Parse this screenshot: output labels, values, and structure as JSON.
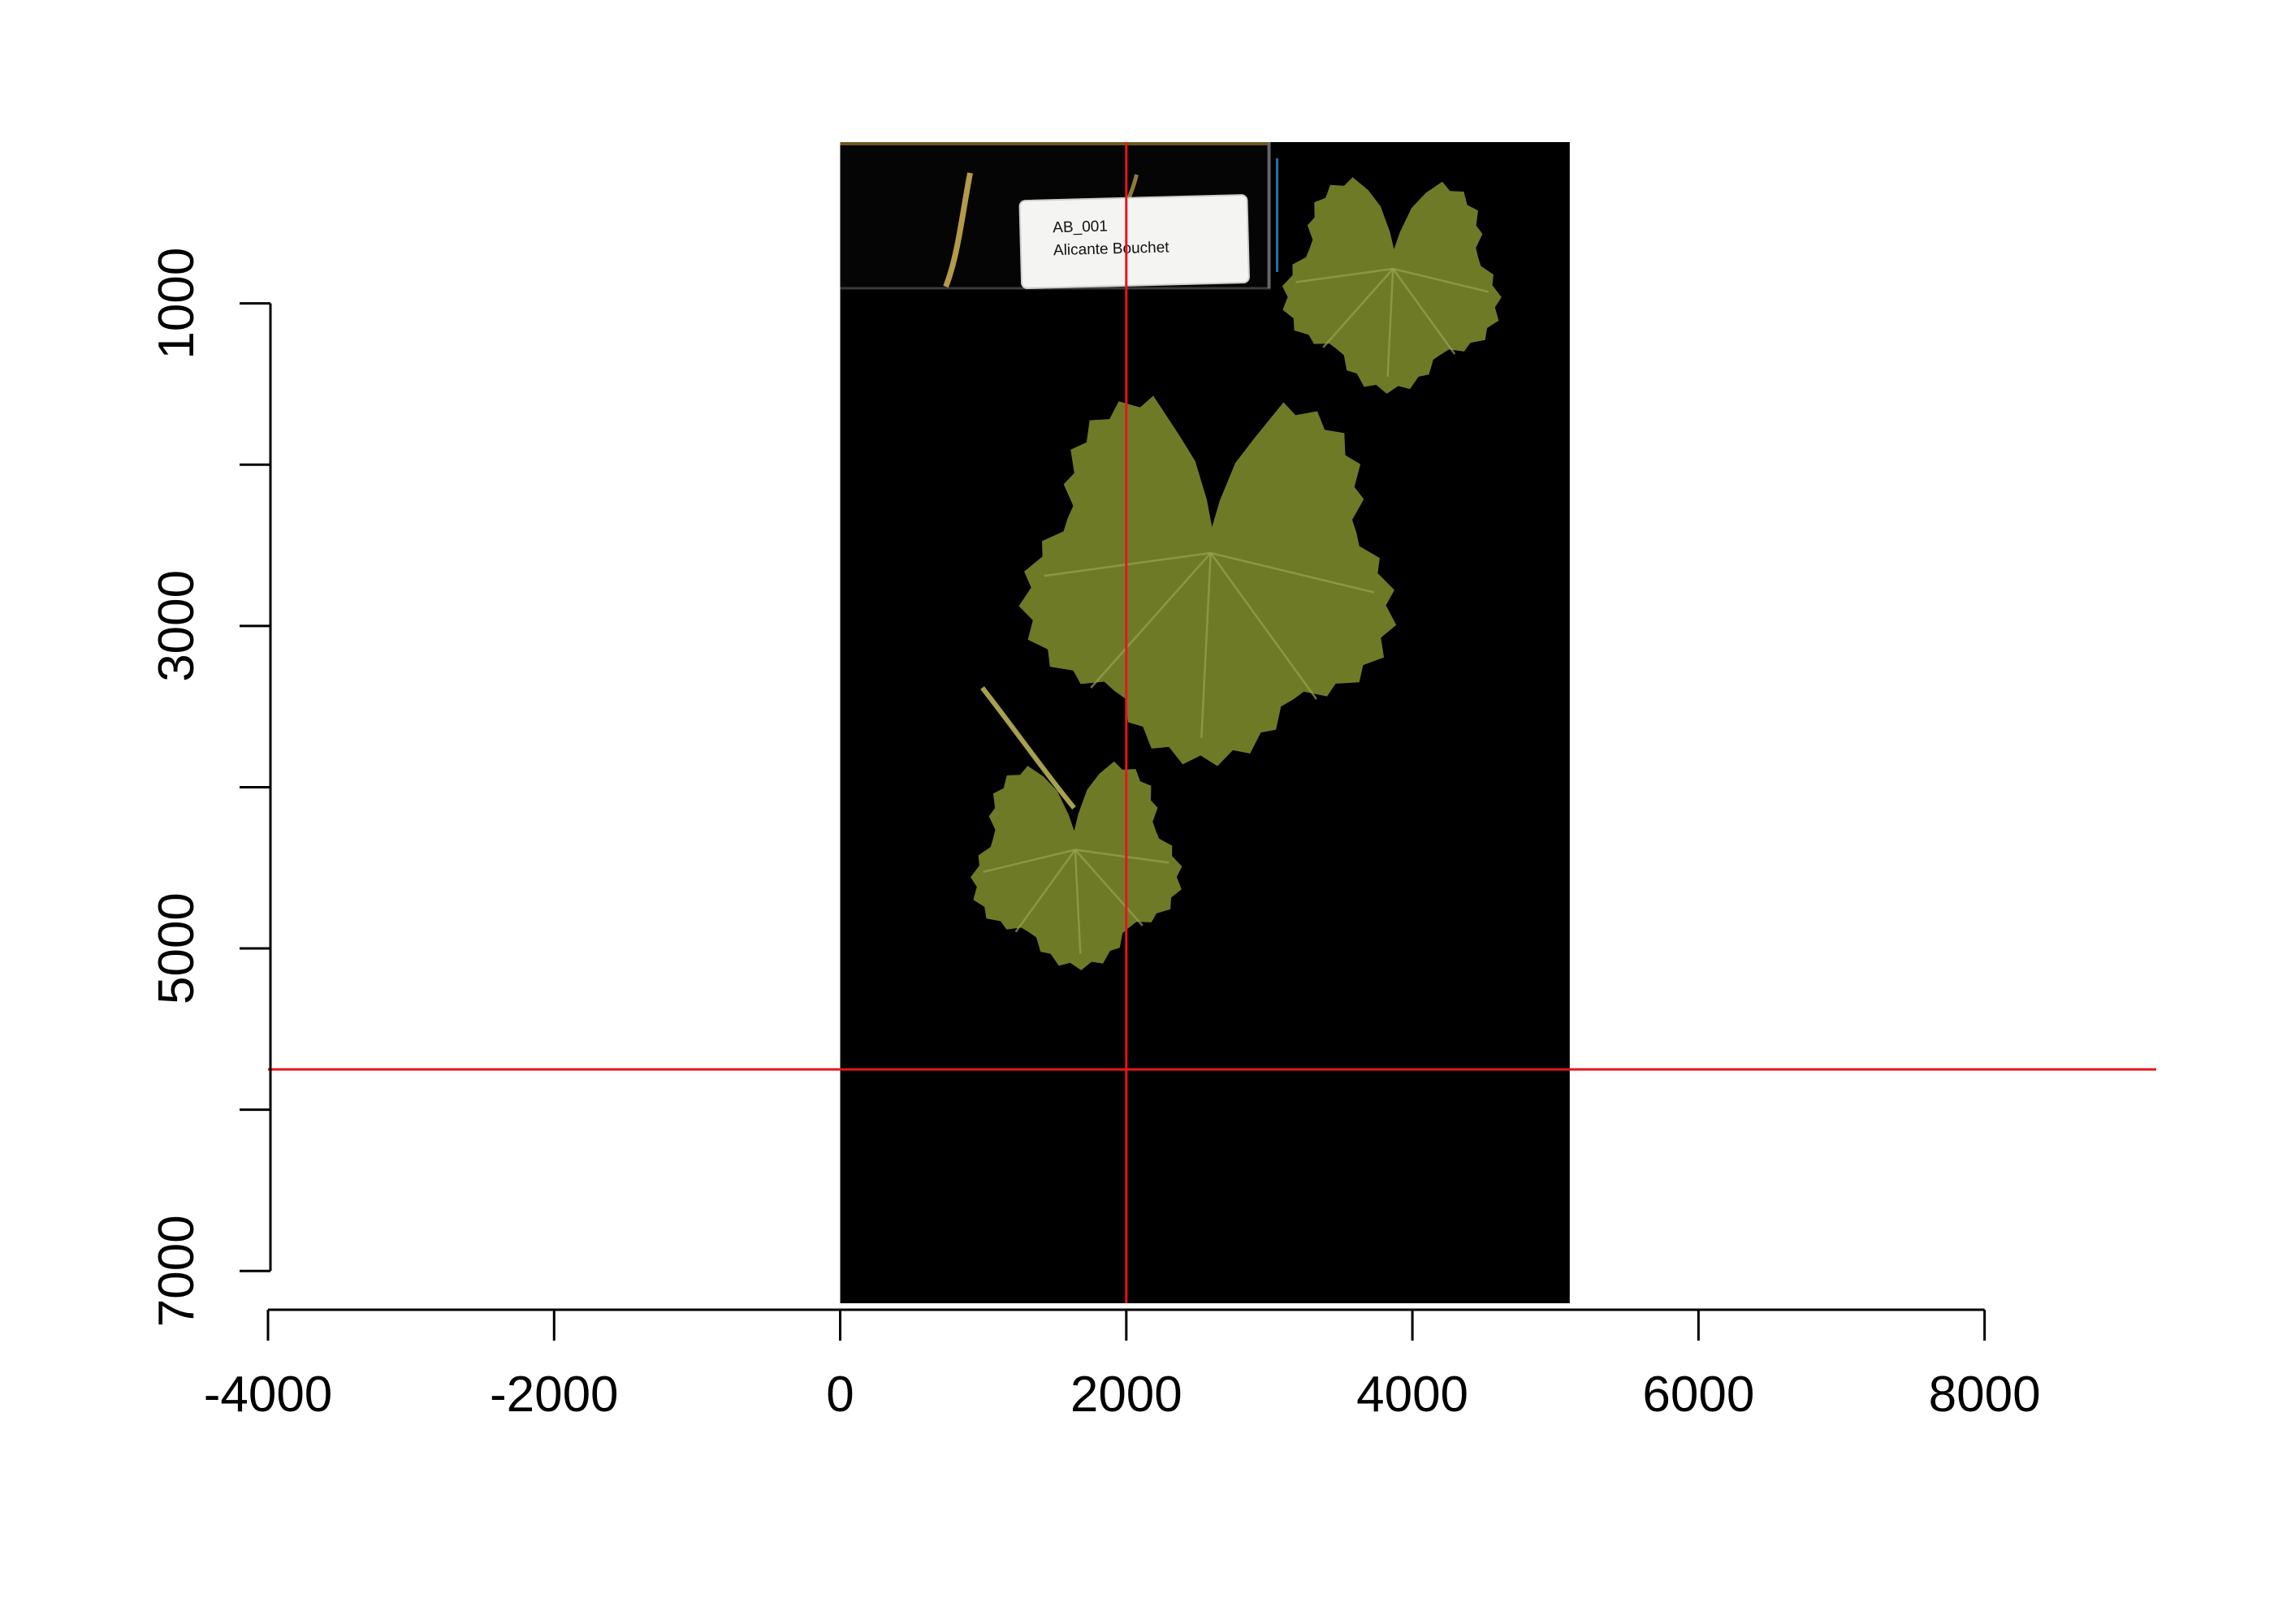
{
  "chart_data": {
    "type": "image",
    "title": "",
    "xlabel": "",
    "ylabel": "",
    "xlim": [
      -4000,
      9200
    ],
    "ylim": [
      7200,
      0
    ],
    "y_reversed": true,
    "x_ticks": [
      -4000,
      -2000,
      0,
      2000,
      4000,
      6000,
      8000
    ],
    "x_tick_labels": [
      "-4000",
      "-2000",
      "0",
      "2000",
      "4000",
      "6000",
      "8000"
    ],
    "y_ticks": [
      1000,
      2000,
      3000,
      4000,
      5000,
      6000,
      7000
    ],
    "y_tick_labels": [
      "1000",
      "",
      "3000",
      "",
      "5000",
      "",
      "7000"
    ],
    "image_extent": {
      "x": [
        0,
        5100
      ],
      "y": [
        0,
        7200
      ]
    },
    "image_background": "#000000",
    "leaf_color": "#6f7a26",
    "crosshair_color": "#e8141c",
    "vline_x": 2000,
    "hline_y": 5750,
    "specimen_label": {
      "line1": "AB_001",
      "line2": "Alicante Bouchet"
    }
  }
}
